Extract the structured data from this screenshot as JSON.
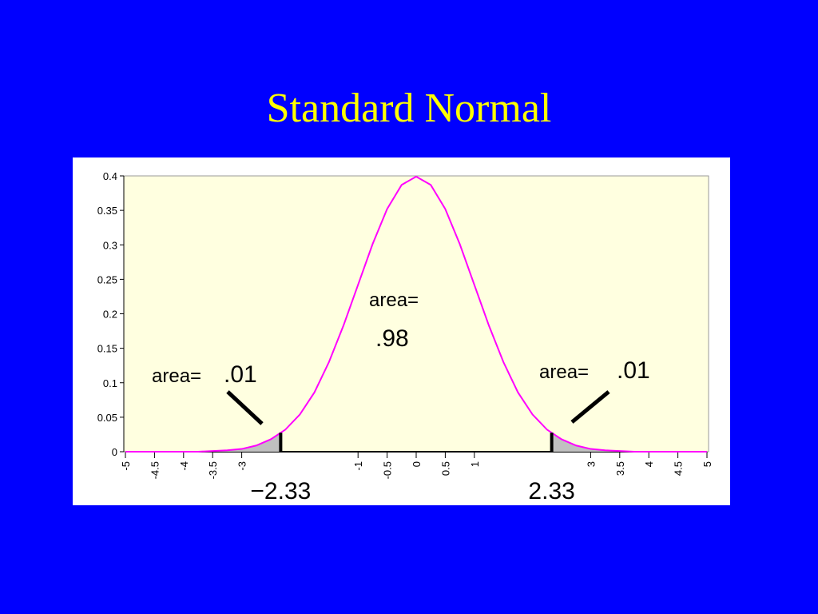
{
  "chart_data": {
    "type": "area",
    "title": "Standard Normal",
    "x": [
      -5,
      -4.75,
      -4.5,
      -4.25,
      -4,
      -3.75,
      -3.5,
      -3.25,
      -3,
      -2.75,
      -2.5,
      -2.25,
      -2,
      -1.75,
      -1.5,
      -1.25,
      -1,
      -0.75,
      -0.5,
      -0.25,
      0,
      0.25,
      0.5,
      0.75,
      1,
      1.25,
      1.5,
      1.75,
      2,
      2.25,
      2.5,
      2.75,
      3,
      3.25,
      3.5,
      3.75,
      4,
      4.25,
      4.5,
      4.75,
      5
    ],
    "values": [
      0,
      0,
      0,
      0,
      0,
      0,
      0.001,
      0.002,
      0.004,
      0.009,
      0.018,
      0.032,
      0.054,
      0.086,
      0.13,
      0.183,
      0.242,
      0.301,
      0.352,
      0.387,
      0.399,
      0.387,
      0.352,
      0.301,
      0.242,
      0.183,
      0.13,
      0.086,
      0.054,
      0.032,
      0.018,
      0.009,
      0.004,
      0.002,
      0.001,
      0,
      0,
      0,
      0,
      0,
      0
    ],
    "color": "#ff00ff",
    "shade_color": "#c0c0c0",
    "xlim": [
      -5,
      5
    ],
    "ylim": [
      0,
      0.4
    ],
    "xticks": [
      -5,
      -4.5,
      -4,
      -3.5,
      -3,
      -1,
      -0.5,
      0,
      0.5,
      1,
      3,
      3.5,
      4,
      4.5,
      5
    ],
    "yticks": [
      0,
      0.05,
      0.1,
      0.15,
      0.2,
      0.25,
      0.3,
      0.35,
      0.4
    ],
    "cutoffs": [
      {
        "value": -2.33,
        "label": "−2.33"
      },
      {
        "value": 2.33,
        "label": "2.33"
      }
    ],
    "annotations": [
      {
        "text": "area=",
        "value": 0.01,
        "value_label": ".01"
      },
      {
        "text": "area=",
        "value": 0.98,
        "value_label": ".98"
      },
      {
        "text": "area=",
        "value": 0.01,
        "value_label": ".01"
      }
    ]
  }
}
